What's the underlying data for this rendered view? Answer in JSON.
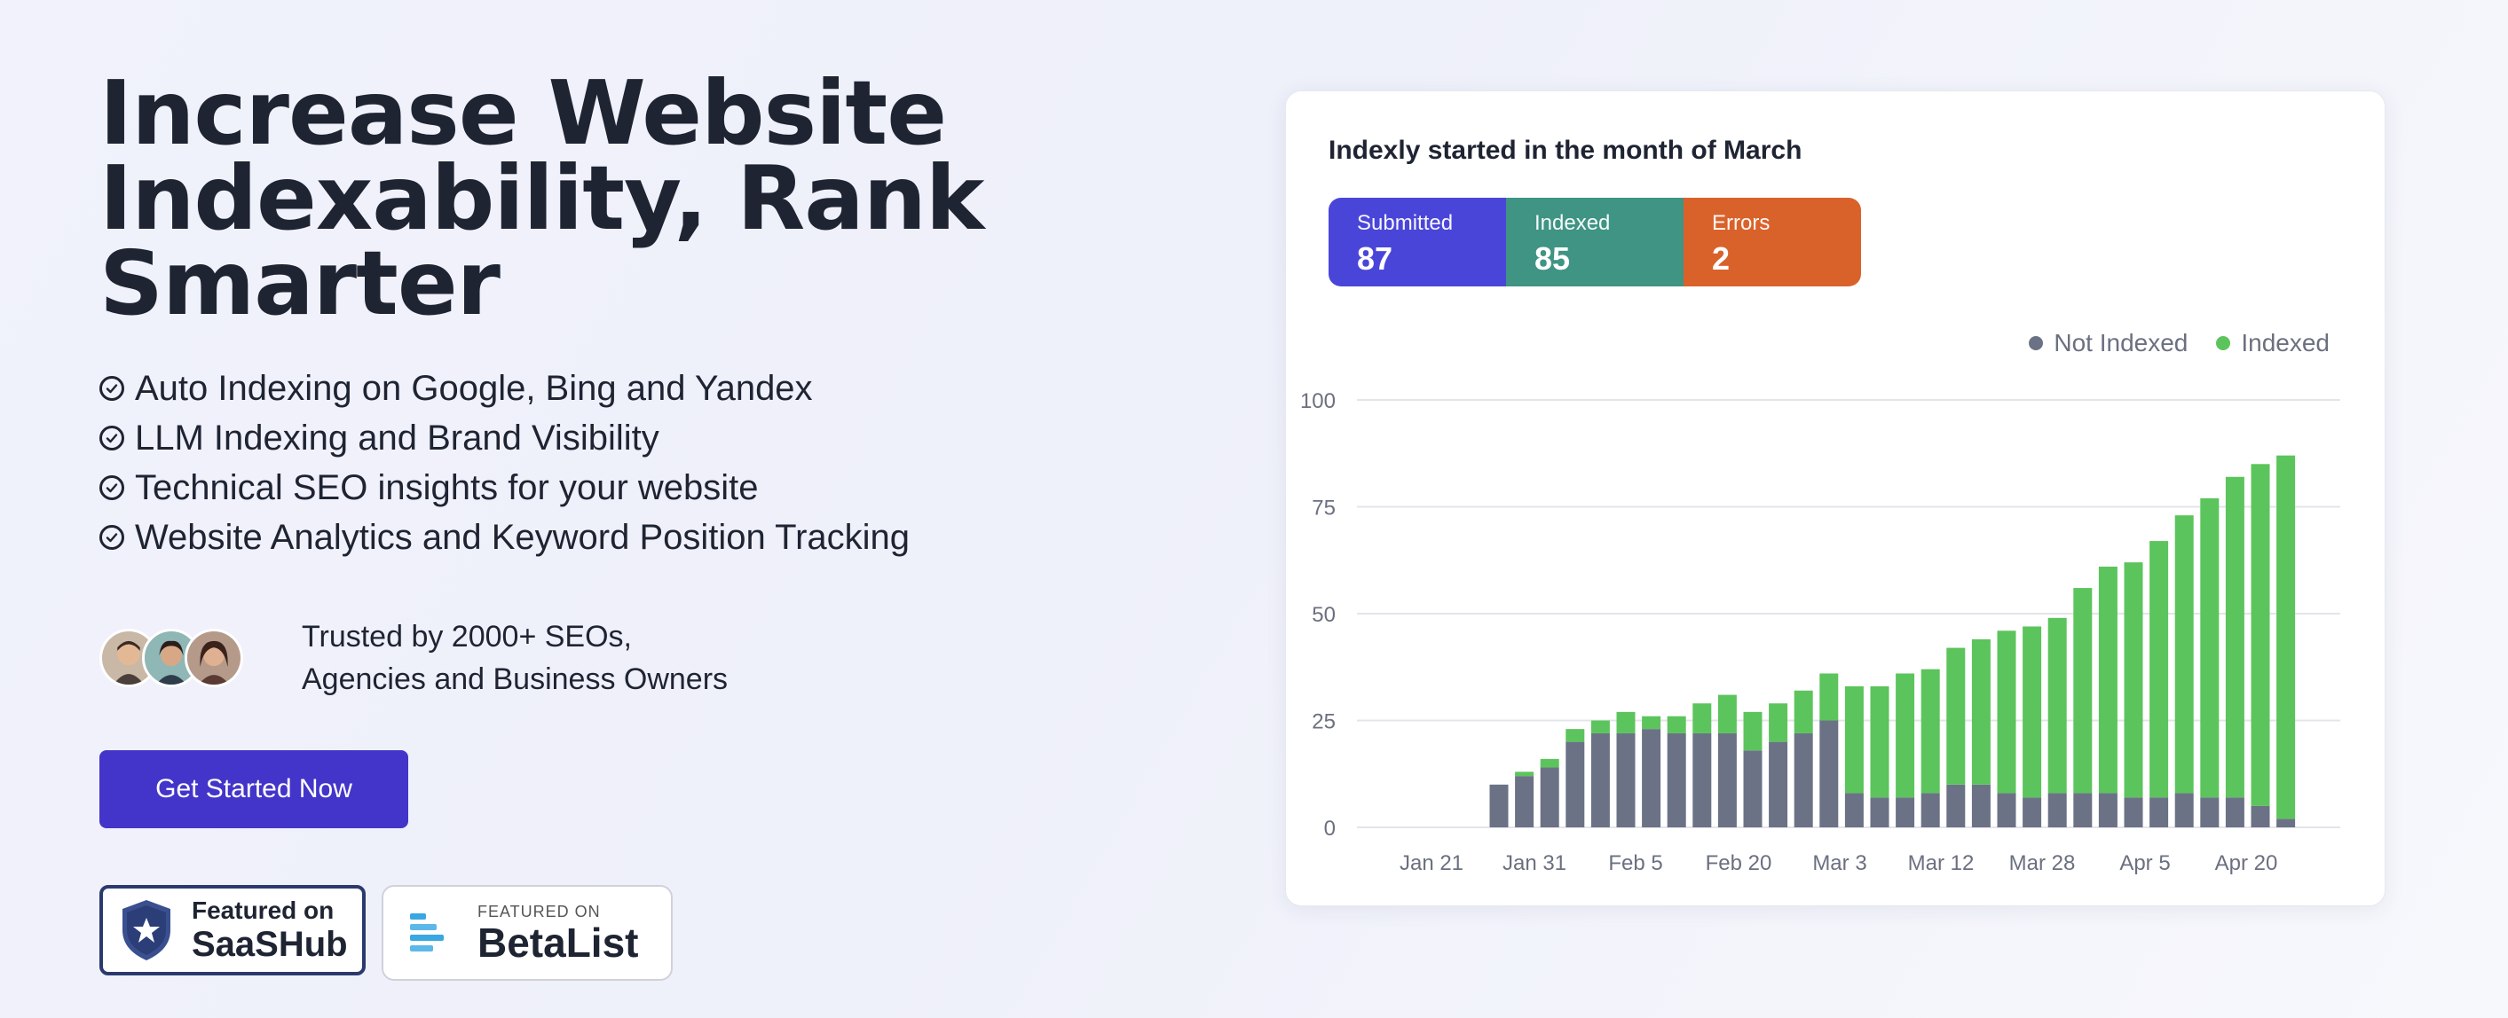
{
  "hero": {
    "headline_line1": "Increase Website",
    "headline_line2": "Indexability, Rank Smarter",
    "features": [
      "Auto Indexing on Google, Bing and Yandex",
      "LLM Indexing and Brand Visibility",
      "Technical SEO insights for your website",
      "Website Analytics and Keyword Position Tracking"
    ],
    "trust_line1": "Trusted by 2000+ SEOs,",
    "trust_line2": "Agencies and Business Owners",
    "cta_label": "Get Started Now"
  },
  "badges": {
    "saashub_line1": "Featured on",
    "saashub_line2": "SaaSHub",
    "betalist_line1": "FEATURED ON",
    "betalist_line2": "BetaList"
  },
  "card": {
    "title": "Indexly started in the month of March",
    "stats": [
      {
        "label": "Submitted",
        "value": "87",
        "color": "#4a45d9"
      },
      {
        "label": "Indexed",
        "value": "85",
        "color": "#3f9484"
      },
      {
        "label": "Errors",
        "value": "2",
        "color": "#d9622b"
      }
    ]
  },
  "colors": {
    "accent": "#4335c9",
    "not_indexed": "#6b7286",
    "indexed": "#5cc45c"
  },
  "chart_data": {
    "type": "bar",
    "stacked": true,
    "x_tick_labels": [
      "Jan 21",
      "Jan 31",
      "Feb 5",
      "Feb 20",
      "Mar 3",
      "Mar 12",
      "Mar 28",
      "Apr 5",
      "Apr 20"
    ],
    "ylim": [
      0,
      100
    ],
    "yticks": [
      0,
      25,
      50,
      75,
      100
    ],
    "grid": true,
    "legend_position": "top-right",
    "series": [
      {
        "name": "Not Indexed",
        "color": "#6b7286",
        "values": [
          10,
          12,
          14,
          20,
          22,
          22,
          23,
          22,
          22,
          22,
          18,
          20,
          22,
          25,
          8,
          7,
          7,
          8,
          10,
          10,
          8,
          7,
          8,
          8,
          8,
          7,
          7,
          8,
          7,
          7,
          5,
          2
        ]
      },
      {
        "name": "Indexed",
        "color": "#5cc45c",
        "values": [
          0,
          1,
          2,
          3,
          3,
          5,
          3,
          4,
          7,
          9,
          9,
          9,
          10,
          11,
          25,
          26,
          29,
          29,
          32,
          34,
          38,
          40,
          41,
          48,
          53,
          55,
          60,
          65,
          70,
          75,
          80,
          85
        ]
      }
    ]
  }
}
